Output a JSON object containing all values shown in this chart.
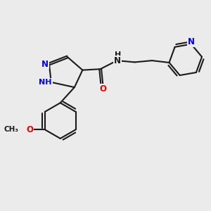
{
  "bg_color": "#ebebeb",
  "bond_color": "#1a1a1a",
  "N_color": "#0000ee",
  "O_color": "#ee0000",
  "bond_width": 1.5,
  "dbo": 0.05,
  "figsize": [
    3.0,
    3.0
  ],
  "dpi": 100,
  "xlim": [
    0,
    10
  ],
  "ylim": [
    0,
    10
  ]
}
